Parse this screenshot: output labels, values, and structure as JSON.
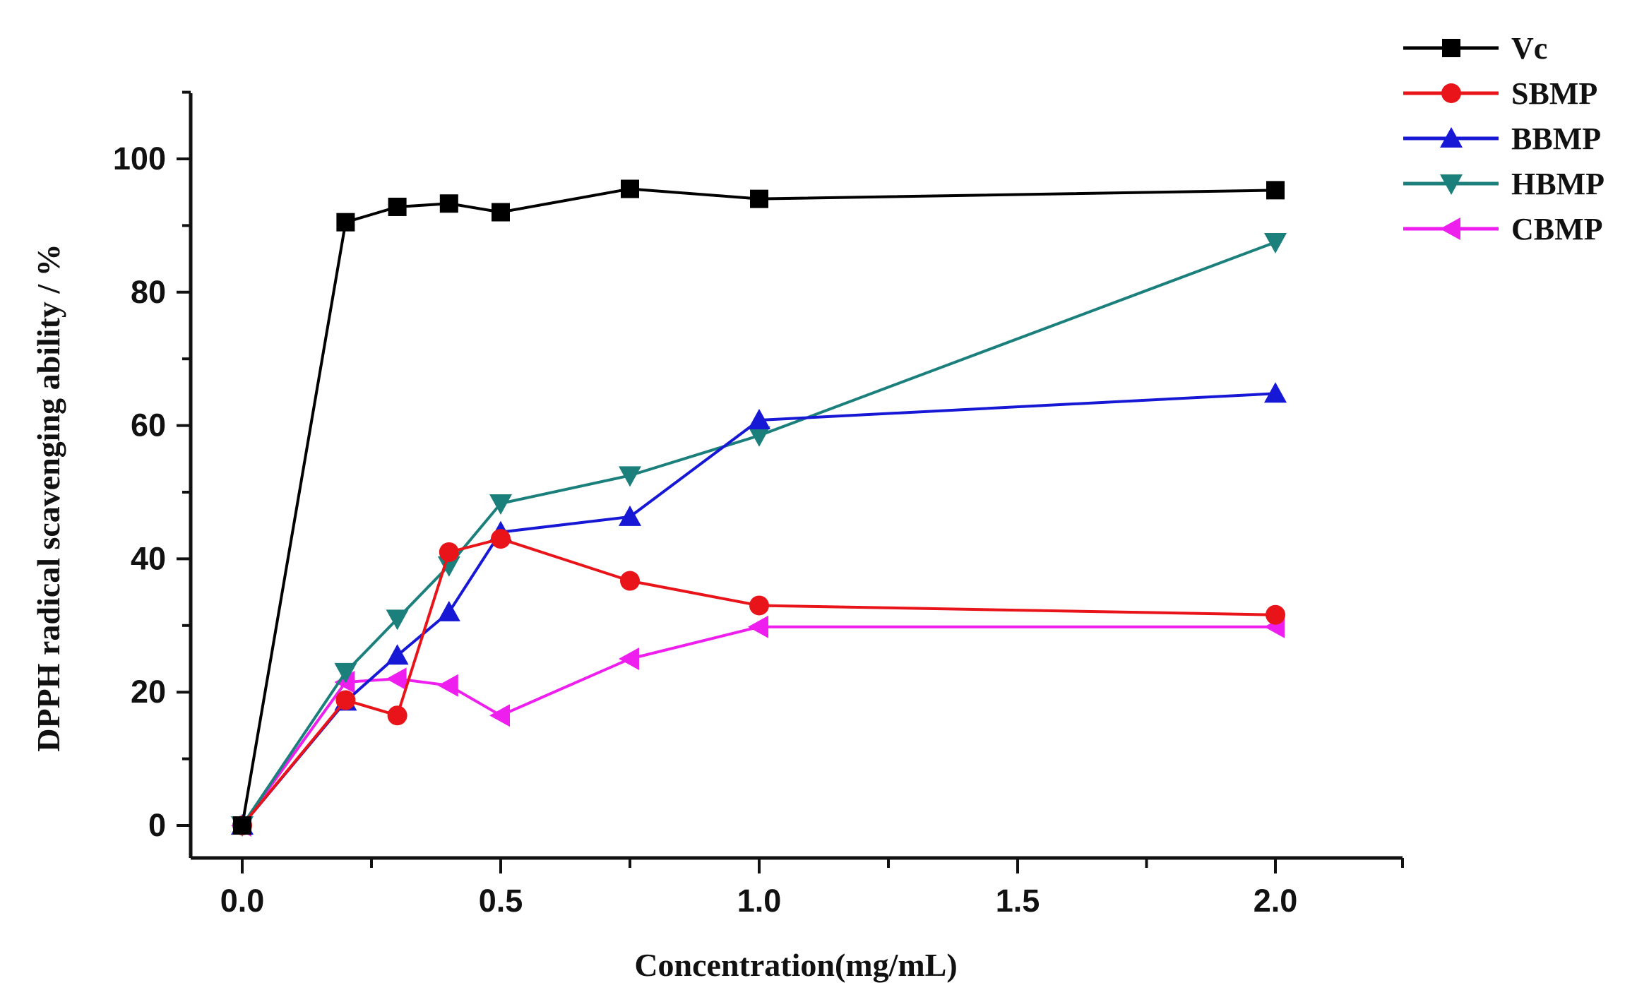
{
  "chart_data": {
    "type": "line",
    "title": "",
    "xlabel": "Concentration(mg/mL)",
    "ylabel": "DPPH radical scavenging ability / %",
    "xlim": [
      -0.1,
      2.25
    ],
    "ylim": [
      -5,
      110
    ],
    "grid": false,
    "legend_position": "top-right",
    "x_ticks": [
      {
        "value": 0.0,
        "label": "0.0"
      },
      {
        "value": 0.5,
        "label": "0.5"
      },
      {
        "value": 1.0,
        "label": "1.0"
      },
      {
        "value": 1.5,
        "label": "1.5"
      },
      {
        "value": 2.0,
        "label": "2.0"
      }
    ],
    "y_ticks": [
      {
        "value": 0,
        "label": "0"
      },
      {
        "value": 20,
        "label": "20"
      },
      {
        "value": 40,
        "label": "40"
      },
      {
        "value": 60,
        "label": "60"
      },
      {
        "value": 80,
        "label": "80"
      },
      {
        "value": 100,
        "label": "100"
      }
    ],
    "x": [
      0,
      0.2,
      0.3,
      0.4,
      0.5,
      0.75,
      1.0,
      2.0
    ],
    "series": [
      {
        "name": "Vc",
        "color": "#000000",
        "marker": "square",
        "values": [
          0,
          90.5,
          92.8,
          93.3,
          92.0,
          95.5,
          94.0,
          95.3
        ]
      },
      {
        "name": "SBMP",
        "color": "#e8141a",
        "marker": "circle",
        "values": [
          0,
          18.8,
          16.5,
          41.0,
          43.0,
          36.7,
          33.0,
          31.6
        ]
      },
      {
        "name": "BBMP",
        "color": "#1717d6",
        "marker": "triangle-up",
        "values": [
          0,
          18.6,
          25.5,
          32.0,
          44.0,
          46.3,
          60.8,
          64.8
        ]
      },
      {
        "name": "HBMP",
        "color": "#1b7f7c",
        "marker": "triangle-down",
        "values": [
          0,
          23.0,
          31.0,
          39.0,
          48.3,
          52.5,
          58.5,
          87.5
        ]
      },
      {
        "name": "CBMP",
        "color": "#ee1fee",
        "marker": "triangle-left",
        "values": [
          0,
          21.5,
          22.0,
          21.0,
          16.5,
          25.0,
          29.8,
          29.8
        ]
      }
    ]
  }
}
